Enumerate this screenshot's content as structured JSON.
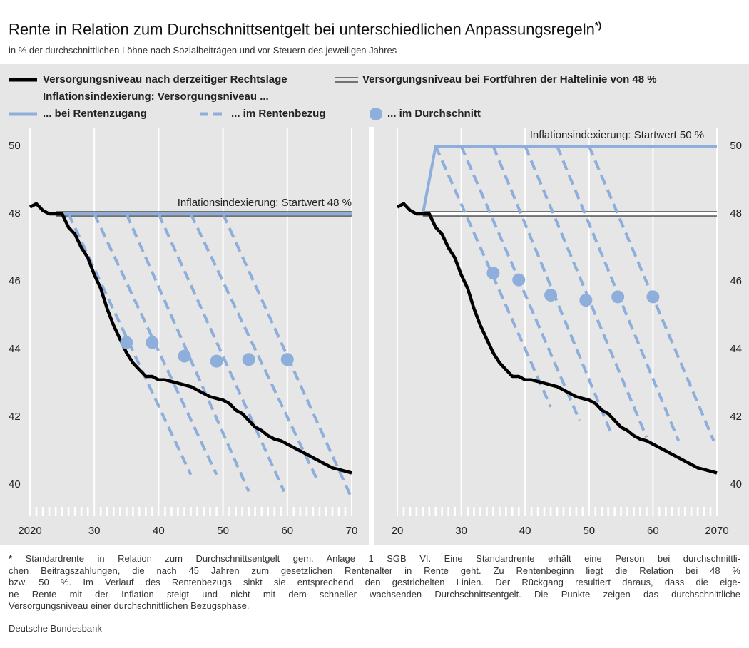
{
  "title": "Rente in Relation zum Durchschnittsentgelt bei unterschiedlichen Anpassungsregeln",
  "title_note": "*)",
  "subtitle": "in % der durchschnittlichen Löhne nach Sozialbeiträgen und vor Steuern des jeweiligen Jahres",
  "legend_group_title": "Inflationsindexierung: Versorgungsniveau ...",
  "chart_data": [
    {
      "type": "line",
      "xlim": [
        2020,
        2070
      ],
      "xticks": [
        2020,
        {
          "value": 2030,
          "label": "30"
        },
        {
          "value": 2040,
          "label": "40"
        },
        {
          "value": 2050,
          "label": "50"
        },
        {
          "value": 2060,
          "label": "60"
        },
        {
          "value": 2070,
          "label": "70"
        }
      ],
      "ylim": [
        39.2,
        50.4
      ],
      "yticks": [
        50,
        48,
        46,
        44,
        42,
        40
      ],
      "y_axis_side": "left",
      "grid": true,
      "annotation": "Inflationsindexierung: Startwert 48 %",
      "annotation_x": 2070,
      "annotation_y": 48,
      "series": [
        {
          "name": "Versorgungsniveau bei Fortführen der Haltelinie von 48 %",
          "color": "#000000",
          "style": "double",
          "x": [
            2024,
            2070
          ],
          "values": [
            48,
            48
          ]
        },
        {
          "name": "... bei Rentenzugang",
          "color": "#8eaedb",
          "style": "solid",
          "x": [
            2024,
            2070
          ],
          "values": [
            48,
            48
          ]
        },
        {
          "name": "... im Rentenbezug",
          "color": "#8eaedb",
          "style": "dashed",
          "lines": [
            {
              "x": [
                2026,
                2045
              ],
              "values": [
                48,
                40.3
              ]
            },
            {
              "x": [
                2030,
                2049
              ],
              "values": [
                48,
                40.3
              ]
            },
            {
              "x": [
                2035,
                2054
              ],
              "values": [
                48,
                39.8
              ]
            },
            {
              "x": [
                2040,
                2059.5
              ],
              "values": [
                48,
                39.8
              ]
            },
            {
              "x": [
                2045,
                2064.5
              ],
              "values": [
                48,
                40.2
              ]
            },
            {
              "x": [
                2050,
                2070
              ],
              "values": [
                48,
                39.6
              ]
            }
          ]
        },
        {
          "name": "Versorgungsniveau nach derzeitiger Rechtslage",
          "color": "#000000",
          "style": "thick",
          "x": [
            2020,
            2021,
            2022,
            2023,
            2024,
            2025,
            2026,
            2027,
            2028,
            2029,
            2030,
            2031,
            2032,
            2033,
            2034,
            2035,
            2036,
            2037,
            2038,
            2039,
            2040,
            2041,
            2042,
            2043,
            2044,
            2045,
            2046,
            2047,
            2048,
            2049,
            2050,
            2051,
            2052,
            2053,
            2054,
            2055,
            2056,
            2057,
            2058,
            2059,
            2060,
            2061,
            2062,
            2063,
            2064,
            2065,
            2066,
            2067,
            2068,
            2069,
            2070
          ],
          "values": [
            48.2,
            48.3,
            48.1,
            48.0,
            48.0,
            48.0,
            47.6,
            47.4,
            47.0,
            46.7,
            46.2,
            45.8,
            45.2,
            44.7,
            44.3,
            43.9,
            43.6,
            43.4,
            43.2,
            43.2,
            43.1,
            43.1,
            43.05,
            43.0,
            42.95,
            42.9,
            42.8,
            42.7,
            42.6,
            42.55,
            42.5,
            42.4,
            42.2,
            42.1,
            41.9,
            41.7,
            41.6,
            41.45,
            41.35,
            41.3,
            41.2,
            41.1,
            41.0,
            40.9,
            40.8,
            40.7,
            40.6,
            40.5,
            40.45,
            40.4,
            40.35
          ]
        },
        {
          "name": "... im Durchschnitt",
          "color": "#8eaedb",
          "style": "dots",
          "x": [
            2035,
            2039,
            2044,
            2049,
            2054,
            2060
          ],
          "values": [
            44.2,
            44.2,
            43.8,
            43.65,
            43.7,
            43.7
          ]
        }
      ]
    },
    {
      "type": "line",
      "xlim": [
        2020,
        2070
      ],
      "xticks": [
        {
          "value": 2020,
          "label": "20"
        },
        {
          "value": 2030,
          "label": "30"
        },
        {
          "value": 2040,
          "label": "40"
        },
        {
          "value": 2050,
          "label": "50"
        },
        {
          "value": 2060,
          "label": "60"
        },
        2070
      ],
      "ylim": [
        39.2,
        50.4
      ],
      "yticks": [
        50,
        48,
        46,
        44,
        42,
        40
      ],
      "y_axis_side": "right",
      "grid": true,
      "annotation": "Inflationsindexierung: Startwert 50 %",
      "annotation_x": 2068,
      "annotation_y": 50,
      "series": [
        {
          "color": "#000000",
          "style": "double",
          "x": [
            2024,
            2070
          ],
          "values": [
            48,
            48
          ]
        },
        {
          "color": "#8eaedb",
          "style": "solid",
          "x": [
            2024,
            2026,
            2070
          ],
          "values": [
            48,
            50,
            50
          ]
        },
        {
          "color": "#8eaedb",
          "style": "dashed",
          "lines": [
            {
              "x": [
                2026,
                2044
              ],
              "values": [
                50,
                42.3
              ]
            },
            {
              "x": [
                2030,
                2048.5
              ],
              "values": [
                50,
                41.9
              ]
            },
            {
              "x": [
                2035,
                2053.5
              ],
              "values": [
                50,
                41.5
              ]
            },
            {
              "x": [
                2040,
                2059
              ],
              "values": [
                50,
                41.4
              ]
            },
            {
              "x": [
                2045,
                2064
              ],
              "values": [
                50,
                41.3
              ]
            },
            {
              "x": [
                2050,
                2069.5
              ],
              "values": [
                50,
                41.3
              ]
            }
          ]
        },
        {
          "color": "#000000",
          "style": "thick",
          "x": [
            2020,
            2021,
            2022,
            2023,
            2024,
            2025,
            2026,
            2027,
            2028,
            2029,
            2030,
            2031,
            2032,
            2033,
            2034,
            2035,
            2036,
            2037,
            2038,
            2039,
            2040,
            2041,
            2042,
            2043,
            2044,
            2045,
            2046,
            2047,
            2048,
            2049,
            2050,
            2051,
            2052,
            2053,
            2054,
            2055,
            2056,
            2057,
            2058,
            2059,
            2060,
            2061,
            2062,
            2063,
            2064,
            2065,
            2066,
            2067,
            2068,
            2069,
            2070
          ],
          "values": [
            48.2,
            48.3,
            48.1,
            48.0,
            48.0,
            48.0,
            47.6,
            47.4,
            47.0,
            46.7,
            46.2,
            45.8,
            45.2,
            44.7,
            44.3,
            43.9,
            43.6,
            43.4,
            43.2,
            43.2,
            43.1,
            43.1,
            43.05,
            43.0,
            42.95,
            42.9,
            42.8,
            42.7,
            42.6,
            42.55,
            42.5,
            42.4,
            42.2,
            42.1,
            41.9,
            41.7,
            41.6,
            41.45,
            41.35,
            41.3,
            41.2,
            41.1,
            41.0,
            40.9,
            40.8,
            40.7,
            40.6,
            40.5,
            40.45,
            40.4,
            40.35
          ]
        },
        {
          "color": "#8eaedb",
          "style": "dots",
          "x": [
            2035,
            2039,
            2044,
            2049.5,
            2054.5,
            2060
          ],
          "values": [
            46.25,
            46.05,
            45.6,
            45.45,
            45.55,
            45.55
          ]
        }
      ]
    }
  ],
  "footnote": {
    "mark": "*",
    "lines": [
      "Standardrente in Relation zum Durchschnittsentgelt gem. Anlage 1 SGB VI. Eine Standardrente erhält eine Person bei durchschnittli-",
      "chen Beitragszahlungen, die nach 45 Jahren zum gesetzlichen Rentenalter in Rente geht. Zu Rentenbeginn liegt die Relation bei 48 %",
      "bzw. 50 %. Im Verlauf des Rentenbezugs sinkt sie entsprechend den gestrichelten Linien. Der Rückgang resultiert daraus, dass die eige-",
      "ne Rente mit der Inflation steigt und nicht mit dem schneller wachsenden Durchschnittsentgelt. Die Punkte zeigen das durchschnittliche",
      "Versorgungsniveau einer durchschnittlichen Bezugsphase."
    ]
  },
  "source": "Deutsche Bundesbank"
}
